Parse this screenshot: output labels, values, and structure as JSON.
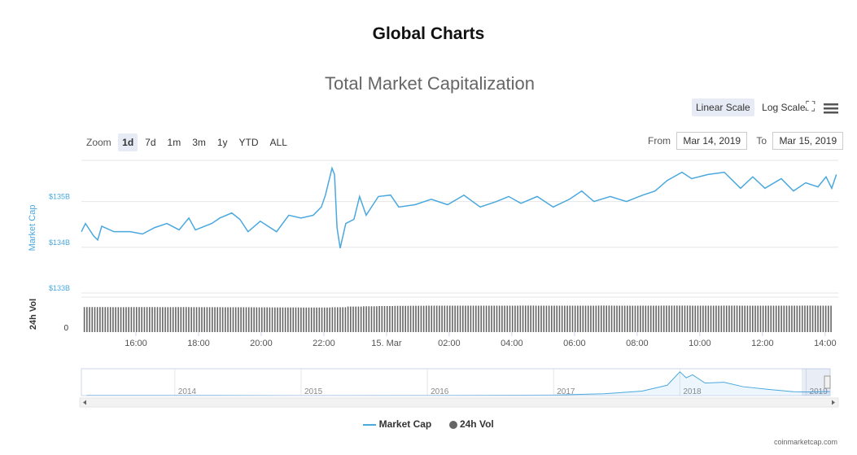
{
  "header": {
    "title": "Global Charts"
  },
  "controls": {
    "scale_buttons": [
      "Linear Scale",
      "Log Scale"
    ],
    "zoom_label": "Zoom",
    "zoom_buttons": [
      "1d",
      "7d",
      "1m",
      "3m",
      "1y",
      "YTD",
      "ALL"
    ],
    "from_label": "From",
    "from": "Mar 14, 2019",
    "to_label": "To",
    "to": "Mar 15, 2019"
  },
  "chart_data": [
    {
      "type": "line",
      "title": "Total Market Capitalization",
      "y_label": "Market Cap",
      "log_scale": false,
      "x": [
        14.26,
        14.39,
        14.65,
        14.78,
        14.91,
        15.3,
        15.82,
        16.21,
        16.6,
        16.99,
        17.38,
        17.69,
        17.9,
        18.42,
        18.68,
        19.06,
        19.32,
        19.58,
        19.97,
        20.49,
        20.88,
        21.27,
        21.66,
        21.92,
        22.05,
        22.26,
        22.34,
        22.42,
        22.52,
        22.7,
        22.96,
        23.14,
        23.35,
        23.74,
        24.13,
        24.39,
        24.91,
        25.43,
        25.95,
        26.47,
        26.99,
        27.51,
        27.9,
        28.29,
        28.81,
        29.32,
        29.84,
        30.23,
        30.62,
        31.14,
        31.66,
        32.18,
        32.57,
        32.96,
        33.43,
        33.74,
        34.26,
        34.78,
        35.3,
        35.69,
        36.08,
        36.6,
        36.99,
        37.38,
        37.77,
        38.03,
        38.21,
        38.36
      ],
      "series": [
        {
          "name": "Market Cap",
          "color": "#4aa8de",
          "values": [
            134.34,
            134.52,
            134.25,
            134.16,
            134.46,
            134.34,
            134.34,
            134.29,
            134.43,
            134.52,
            134.38,
            134.64,
            134.38,
            134.52,
            134.64,
            134.75,
            134.61,
            134.34,
            134.57,
            134.34,
            134.7,
            134.64,
            134.7,
            134.88,
            135.14,
            135.73,
            135.59,
            134.43,
            133.98,
            134.52,
            134.61,
            135.11,
            134.7,
            135.11,
            135.14,
            134.88,
            134.93,
            135.05,
            134.93,
            135.14,
            134.88,
            135.0,
            135.11,
            134.96,
            135.11,
            134.88,
            135.05,
            135.23,
            135.0,
            135.11,
            135.0,
            135.14,
            135.23,
            135.46,
            135.64,
            135.5,
            135.59,
            135.64,
            135.29,
            135.54,
            135.29,
            135.5,
            135.23,
            135.41,
            135.32,
            135.54,
            135.29,
            135.59
          ]
        }
      ],
      "xlim": [
        14.26,
        38.42
      ],
      "xticks": [
        {
          "value": 16,
          "label": "16:00"
        },
        {
          "value": 18,
          "label": "18:00"
        },
        {
          "value": 20,
          "label": "20:00"
        },
        {
          "value": 22,
          "label": "22:00"
        },
        {
          "value": 24,
          "label": "15. Mar"
        },
        {
          "value": 26,
          "label": "02:00"
        },
        {
          "value": 28,
          "label": "04:00"
        },
        {
          "value": 30,
          "label": "06:00"
        },
        {
          "value": 32,
          "label": "08:00"
        },
        {
          "value": 34,
          "label": "10:00"
        },
        {
          "value": 36,
          "label": "12:00"
        },
        {
          "value": 38,
          "label": "14:00"
        }
      ],
      "ylim": [
        133,
        135.9
      ],
      "yticks": [
        {
          "value": 133,
          "label": "$133B"
        },
        {
          "value": 134,
          "label": "$134B"
        },
        {
          "value": 135,
          "label": "$135B"
        }
      ],
      "grid": true
    },
    {
      "type": "bar",
      "y_label": "24h Vol",
      "x": [
        14.5,
        15,
        15.5,
        16,
        16.5,
        17,
        17.5,
        18,
        18.5,
        19,
        19.5,
        20,
        20.5,
        21,
        21.5,
        22,
        22.5,
        23,
        23.5,
        24,
        24.5,
        25,
        25.5,
        26,
        26.5,
        27,
        27.5,
        28,
        28.5,
        29,
        29.5,
        30,
        30.5,
        31,
        31.5,
        32,
        32.5,
        33,
        33.5,
        34,
        34.5,
        35,
        35.5,
        36,
        36.5,
        37,
        37.5,
        38
      ],
      "series": [
        {
          "name": "24h Vol",
          "color": "#666666",
          "values": [
            28.6,
            28.6,
            28.5,
            28.6,
            28.6,
            28.5,
            28.6,
            28.5,
            28.5,
            28.4,
            28.4,
            28.3,
            28.2,
            28.2,
            28.1,
            28.1,
            28.4,
            29.2,
            29.5,
            29.8,
            30.0,
            30.1,
            30.2,
            30.2,
            30.2,
            30.2,
            30.2,
            30.2,
            30.3,
            30.2,
            30.2,
            30.2,
            30.2,
            30.3,
            30.2,
            30.2,
            30.2,
            30.3,
            30.3,
            30.2,
            30.2,
            30.3,
            30.2,
            30.2,
            30.2,
            30.2,
            30.3,
            30.2
          ]
        }
      ],
      "ylim": [
        0,
        40
      ],
      "yticks": [
        0
      ]
    },
    {
      "type": "area",
      "color": "#4aa8de",
      "x": [
        2013.3,
        2014,
        2015,
        2016,
        2017,
        2017.4,
        2017.7,
        2017.9,
        2018,
        2018.05,
        2018.1,
        2018.2,
        2018.35,
        2018.5,
        2018.7,
        2018.9,
        2019,
        2019.19
      ],
      "values": [
        10,
        10,
        5,
        7,
        18,
        60,
        150,
        350,
        800,
        600,
        700,
        420,
        450,
        300,
        210,
        130,
        125,
        135
      ],
      "xlim": [
        2013.26,
        2019.19
      ],
      "xticks": [
        2014,
        2015,
        2016,
        2017,
        2018,
        2019
      ],
      "ylim": [
        0,
        850
      ]
    }
  ],
  "credit": "coinmarketcap.com"
}
